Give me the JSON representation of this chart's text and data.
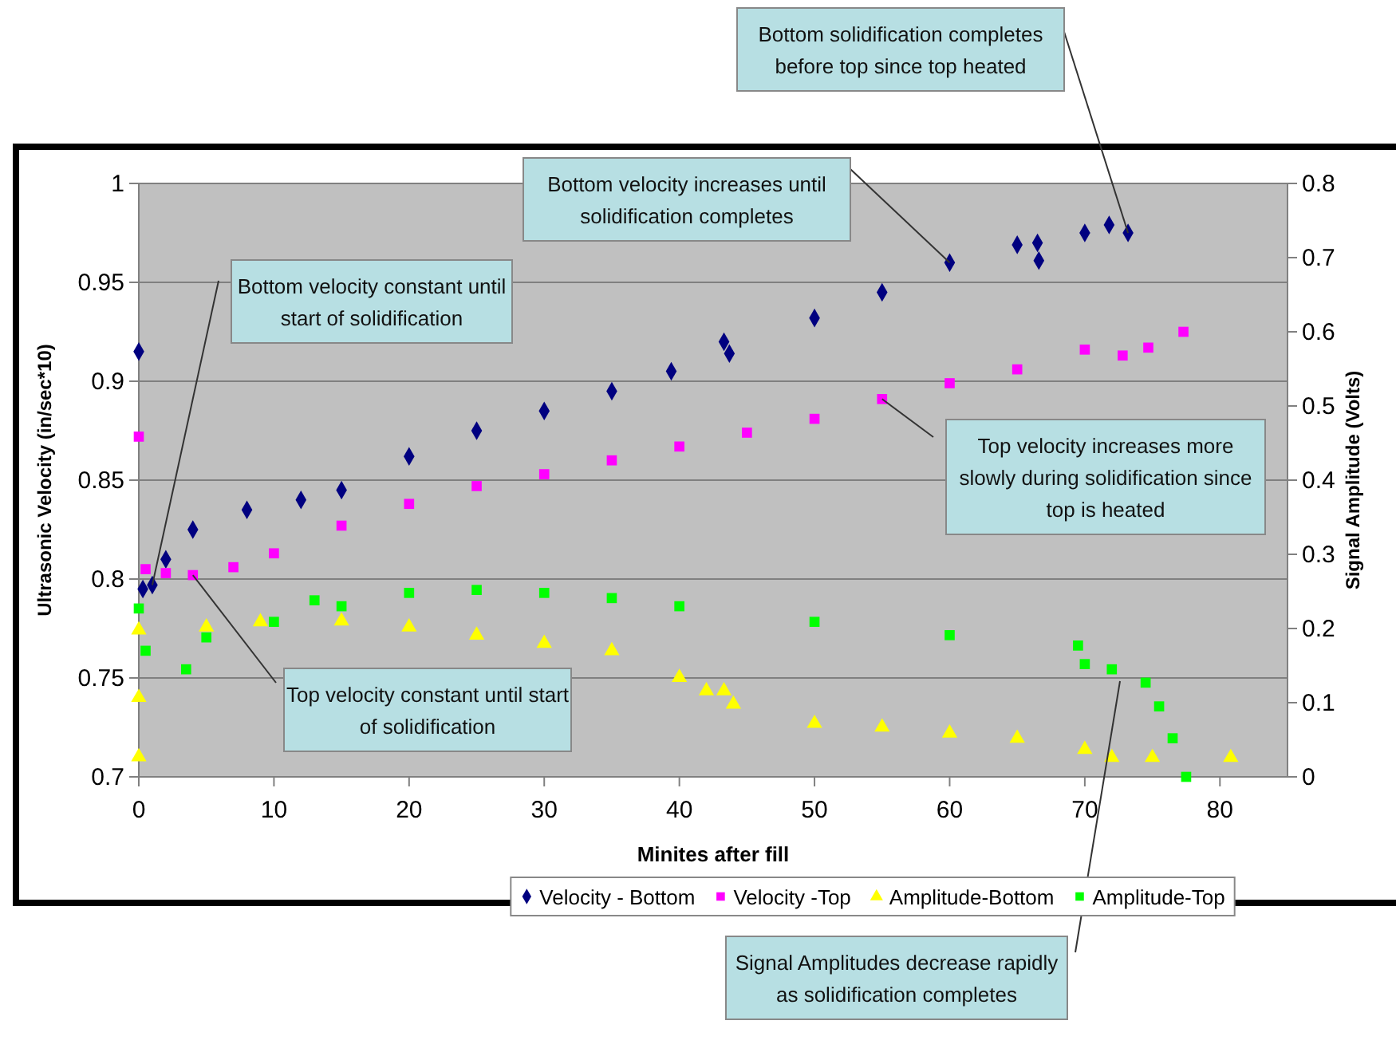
{
  "chart_data": {
    "type": "scatter",
    "xlabel": "Minites after fill",
    "ylabel": "Ultrasonic Velocity (in/sec*10)",
    "y2label": "Signal Amplitude (Volts)",
    "xlim": [
      0,
      85
    ],
    "xticks": [
      0,
      10,
      20,
      30,
      40,
      50,
      60,
      70,
      80
    ],
    "ylim": [
      0.7,
      1
    ],
    "yticks": [
      0.7,
      0.75,
      0.8,
      0.85,
      0.9,
      0.95,
      1
    ],
    "y2lim": [
      0,
      0.8
    ],
    "y2ticks": [
      0,
      0.1,
      0.2,
      0.3,
      0.4,
      0.5,
      0.6,
      0.7,
      0.8
    ],
    "grid": "y",
    "legend": "bottom",
    "series": [
      {
        "name": "Velocity - Bottom",
        "color": "#000080",
        "marker": "diamond",
        "x": [
          0,
          0.3,
          1,
          2,
          4,
          8,
          12,
          15,
          20,
          25,
          30,
          35,
          39.4,
          43.3,
          43.7,
          50,
          55,
          60,
          65,
          66.5,
          66.6,
          70,
          71.8,
          73.2
        ],
        "values": [
          0.915,
          0.795,
          0.797,
          0.81,
          0.825,
          0.835,
          0.84,
          0.845,
          0.862,
          0.875,
          0.885,
          0.895,
          0.905,
          0.92,
          0.914,
          0.932,
          0.945,
          0.96,
          0.969,
          0.97,
          0.961,
          0.975,
          0.979,
          0.975
        ]
      },
      {
        "name": "Velocity -Top",
        "color": "#ff00ff",
        "marker": "square",
        "x": [
          0,
          0.5,
          2,
          4,
          7,
          10,
          15,
          20,
          25,
          30,
          35,
          40,
          45,
          50,
          55,
          60,
          65,
          70,
          72.8,
          74.7,
          77.3
        ],
        "values": [
          0.872,
          0.805,
          0.803,
          0.802,
          0.806,
          0.813,
          0.827,
          0.838,
          0.847,
          0.853,
          0.86,
          0.867,
          0.874,
          0.881,
          0.891,
          0.899,
          0.906,
          0.916,
          0.913,
          0.917,
          0.925
        ]
      },
      {
        "name": "Amplitude-Bottom",
        "color": "#ffff00",
        "marker": "triangle",
        "axis": "y2",
        "x": [
          0,
          0,
          0,
          5,
          9,
          15,
          20,
          25,
          30,
          35,
          40,
          42,
          43.3,
          44,
          50,
          55,
          60,
          65,
          70,
          72,
          75,
          80.8
        ],
        "values": [
          0.107,
          0.027,
          0.198,
          0.202,
          0.209,
          0.21,
          0.202,
          0.191,
          0.18,
          0.17,
          0.134,
          0.116,
          0.116,
          0.098,
          0.072,
          0.067,
          0.059,
          0.052,
          0.037,
          0.026,
          0.026,
          0.026
        ]
      },
      {
        "name": "Amplitude-Top",
        "color": "#00ff00",
        "marker": "square",
        "axis": "y2",
        "x": [
          0,
          0.5,
          3.5,
          5,
          10,
          13,
          15,
          20,
          25,
          30,
          35,
          40,
          50,
          60,
          69.5,
          70,
          72,
          74.5,
          75.5,
          76.5,
          77.5
        ],
        "values": [
          0.227,
          0.17,
          0.145,
          0.188,
          0.209,
          0.238,
          0.23,
          0.248,
          0.252,
          0.248,
          0.241,
          0.23,
          0.209,
          0.191,
          0.177,
          0.152,
          0.145,
          0.127,
          0.095,
          0.052,
          0
        ]
      }
    ],
    "annotations": [
      {
        "text": "Bottom velocity constant until start of solidification",
        "x": 1,
        "y": 0.797
      },
      {
        "text": "Top velocity constant until start of solidification",
        "x": 4,
        "y": 0.802
      },
      {
        "text": "Bottom velocity increases until solidification completes",
        "x": 60,
        "y": 0.96
      },
      {
        "text": "Bottom solidification completes before top since top heated",
        "x": 73.2,
        "y": 0.975
      },
      {
        "text": "Top velocity increases more slowly during solidification since top is heated",
        "x": 55,
        "y": 0.891
      },
      "Signal Amplitudes decrease rapidly as solidification completes"
    ]
  }
}
